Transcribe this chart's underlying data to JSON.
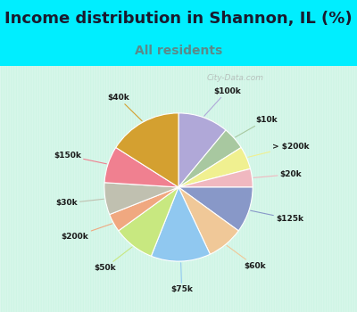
{
  "title": "Income distribution in Shannon, IL (%)",
  "subtitle": "All residents",
  "labels": [
    "$100k",
    "$10k",
    "> $200k",
    "$20k",
    "$125k",
    "$60k",
    "$75k",
    "$50k",
    "$200k",
    "$30k",
    "$150k",
    "$40k"
  ],
  "values": [
    11,
    5,
    5,
    4,
    10,
    8,
    13,
    9,
    4,
    7,
    8,
    16
  ],
  "colors": [
    "#b0a8d8",
    "#a8c8a0",
    "#f0f090",
    "#f0b8c0",
    "#8898c8",
    "#f0c898",
    "#90c8f0",
    "#c8e880",
    "#f0a880",
    "#c0c0b0",
    "#f08090",
    "#d4a030"
  ],
  "bg_cyan": "#00eeff",
  "bg_chart_top": "#e0f5f0",
  "bg_chart_bottom": "#c8f0d8",
  "title_color": "#1a1a2e",
  "subtitle_color": "#5a8a8a",
  "title_fontsize": 13,
  "subtitle_fontsize": 10,
  "watermark": "City-Data.com"
}
